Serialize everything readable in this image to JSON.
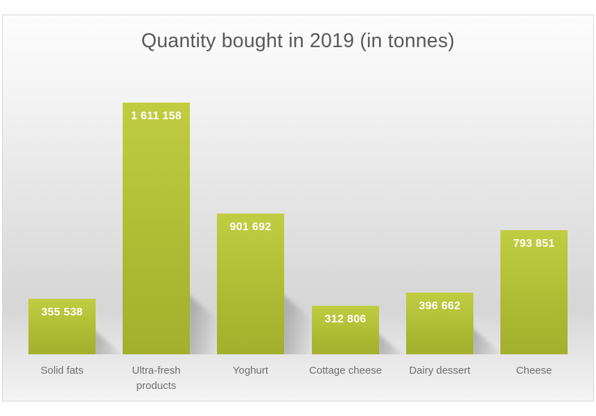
{
  "chart": {
    "title": "Quantity bought in 2019 (in tonnes)",
    "title_color": "#595959",
    "category_label_color": "#6e6e6e",
    "value_label_color": "#ffffff",
    "bar_color_top": "#c0cd42",
    "bar_color_bottom": "#a2b02e",
    "frame_border_color": "#d7d7d7"
  },
  "chart_data": {
    "type": "bar",
    "title": "Quantity bought in 2019 (in tonnes)",
    "categories": [
      "Solid fats",
      "Ultra-fresh products",
      "Yoghurt",
      "Cottage cheese",
      "Dairy dessert",
      "Cheese"
    ],
    "values": [
      355538,
      1611158,
      901692,
      312806,
      396662,
      793851
    ],
    "value_labels": [
      "355 538",
      "1 611 158",
      "901 692",
      "312 806",
      "396 662",
      "793 851"
    ],
    "xlabel": "",
    "ylabel": "",
    "ylim": [
      0,
      1611158
    ],
    "grid": false,
    "legend": false,
    "axis_ticks": "none",
    "data_labels": "inside-end white bold, thousands separated by spaces",
    "bar_style": "yellow-green vertical gradient with perspective drop shadow to lower right"
  }
}
